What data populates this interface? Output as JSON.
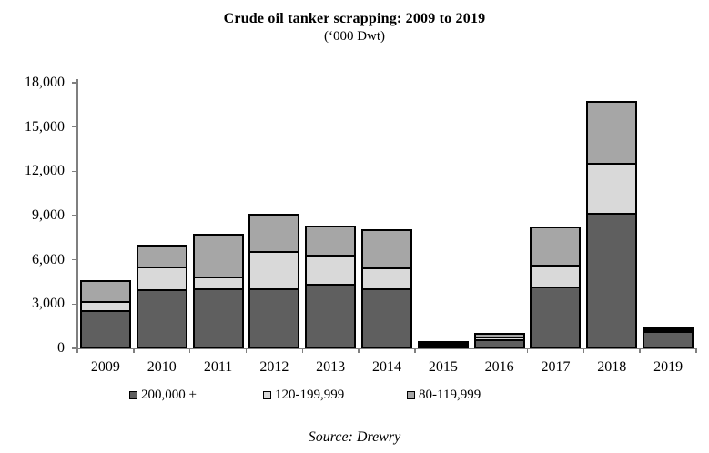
{
  "title": "Crude oil tanker scrapping: 2009 to 2019",
  "subtitle": "(‘000 Dwt)",
  "source": "Source: Drewry",
  "chart_data": {
    "type": "bar",
    "stacked": true,
    "title": "Crude oil tanker scrapping: 2009 to 2019",
    "subtitle": "('000 Dwt)",
    "xlabel": "",
    "ylabel": "'000 Dwt",
    "ylim": [
      0,
      18000
    ],
    "ytick_step": 3000,
    "ytick_labels": [
      "0",
      "3,000",
      "6,000",
      "9,000",
      "12,000",
      "15,000",
      "18,000"
    ],
    "grid": false,
    "legend_position": "bottom",
    "categories": [
      "2009",
      "2010",
      "2011",
      "2012",
      "2013",
      "2014",
      "2015",
      "2016",
      "2017",
      "2018",
      "2019"
    ],
    "series": [
      {
        "name": "200,000 +",
        "color": "#5f5f5f",
        "values": [
          2600,
          4000,
          4100,
          4050,
          4350,
          4100,
          250,
          600,
          4200,
          9200,
          1150
        ]
      },
      {
        "name": "120-199,999",
        "color": "#d9d9d9",
        "values": [
          700,
          1700,
          900,
          2650,
          2150,
          1500,
          150,
          350,
          1600,
          3500,
          300
        ]
      },
      {
        "name": "80-119,999",
        "color": "#a6a6a6",
        "values": [
          1550,
          1600,
          3000,
          2650,
          2100,
          2700,
          200,
          350,
          2700,
          4300,
          100
        ]
      }
    ],
    "totals": [
      4850,
      7300,
      8000,
      9350,
      8600,
      8300,
      600,
      1300,
      8500,
      17000,
      1550
    ]
  },
  "colors": {
    "axis": "#7f7f7f",
    "bar_border": "#000000",
    "background": "#ffffff"
  },
  "legend_swatch_names": [
    "swatch-200000-plus",
    "swatch-120-199999",
    "swatch-80-119999"
  ]
}
